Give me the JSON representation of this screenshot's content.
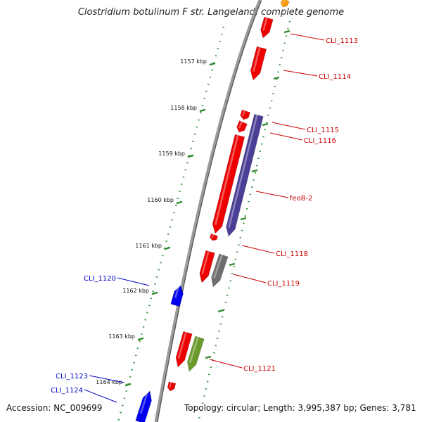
{
  "title": "Clostridium botulinum F str. Langeland, complete genome",
  "footer": {
    "accession": "Accession: NC_009699",
    "summary": "Topology: circular; Length: 3,995,387 bp; Genes: 3,781"
  },
  "colors": {
    "backbone": "#8a8a8a",
    "tick": "#2f8a2f",
    "forward_label": "#cc0000",
    "reverse_label": "#0000cc",
    "red_feature": "#ee0000",
    "purple_feature": "#4a3f96",
    "gray_feature": "#6e6e6e",
    "green_feature": "#6a9a2a",
    "blue_feature": "#0000ee",
    "orange_feature": "#ff9900"
  },
  "ticks": [
    {
      "label": "1157 kbp"
    },
    {
      "label": "1158 kbp"
    },
    {
      "label": "1159 kbp"
    },
    {
      "label": "1160 kbp"
    },
    {
      "label": "1161 kbp"
    },
    {
      "label": "1162 kbp"
    },
    {
      "label": "1163 kbp"
    },
    {
      "label": "1164 kbp"
    }
  ],
  "gene_labels": [
    {
      "text": "CLI_1113",
      "strand": "forward"
    },
    {
      "text": "CLI_1114",
      "strand": "forward"
    },
    {
      "text": "CLI_1115",
      "strand": "forward"
    },
    {
      "text": "CLI_1116",
      "strand": "forward"
    },
    {
      "text": "feoB-2",
      "strand": "forward"
    },
    {
      "text": "CLI_1118",
      "strand": "forward"
    },
    {
      "text": "CLI_1119",
      "strand": "forward"
    },
    {
      "text": "CLI_1120",
      "strand": "reverse"
    },
    {
      "text": "CLI_1121",
      "strand": "forward"
    },
    {
      "text": "CLI_1123",
      "strand": "reverse"
    },
    {
      "text": "CLI_1124",
      "strand": "reverse"
    }
  ]
}
